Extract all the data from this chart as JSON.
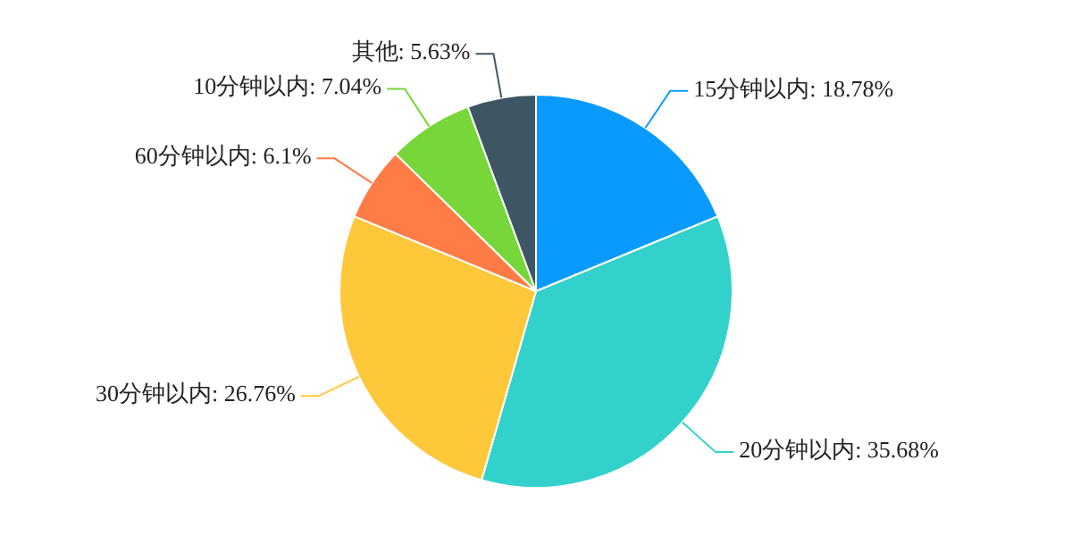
{
  "chart_data": {
    "type": "pie",
    "categories": [
      "15分钟以内",
      "20分钟以内",
      "30分钟以内",
      "60分钟以内",
      "10分钟以内",
      "其他"
    ],
    "values": [
      18.78,
      35.68,
      26.76,
      6.1,
      7.04,
      5.63
    ],
    "value_labels": [
      "18.78%",
      "35.68%",
      "26.76%",
      "6.1%",
      "7.04%",
      "5.63%"
    ],
    "colors": [
      "#0a9afe",
      "#33d1cc",
      "#ffc73a",
      "#ff7c47",
      "#77d63a",
      "#3e5663"
    ]
  }
}
